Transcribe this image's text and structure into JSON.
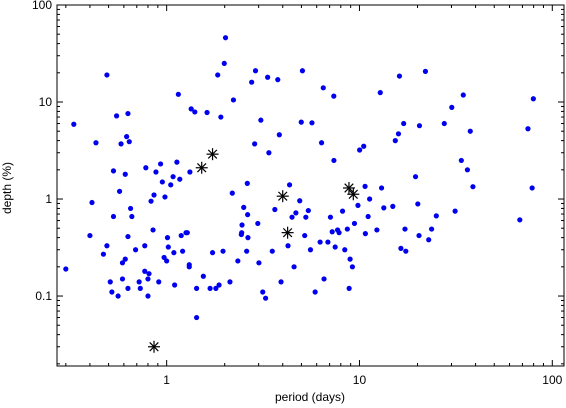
{
  "chart_data": {
    "type": "scatter",
    "xlabel": "period (days)",
    "ylabel": "depth (%)",
    "xscale": "log",
    "yscale": "log",
    "xlim": [
      0.27,
      115
    ],
    "ylim": [
      0.019,
      100
    ],
    "xticks": [
      {
        "value": 1,
        "label": "1"
      },
      {
        "value": 10,
        "label": "10"
      },
      {
        "value": 100,
        "label": "100"
      }
    ],
    "yticks": [
      {
        "value": 0.1,
        "label": "0.1"
      },
      {
        "value": 1,
        "label": "1"
      },
      {
        "value": 10,
        "label": "10"
      },
      {
        "value": 100,
        "label": "100"
      }
    ],
    "grid": false,
    "legend": "none",
    "series": [
      {
        "marker": "dot",
        "color": "#0000ee",
        "points": [
          [
            0.3,
            0.19
          ],
          [
            0.33,
            5.9
          ],
          [
            0.4,
            0.42
          ],
          [
            0.41,
            0.92
          ],
          [
            0.43,
            3.8
          ],
          [
            0.47,
            0.27
          ],
          [
            0.49,
            19
          ],
          [
            0.49,
            0.33
          ],
          [
            0.51,
            0.14
          ],
          [
            0.52,
            0.11
          ],
          [
            0.53,
            0.66
          ],
          [
            0.53,
            1.95
          ],
          [
            0.55,
            7.2
          ],
          [
            0.56,
            0.1
          ],
          [
            0.57,
            1.2
          ],
          [
            0.58,
            3.7
          ],
          [
            0.59,
            0.22
          ],
          [
            0.59,
            0.15
          ],
          [
            0.61,
            0.24
          ],
          [
            0.61,
            1.8
          ],
          [
            0.62,
            4.4
          ],
          [
            0.63,
            7.6
          ],
          [
            0.63,
            0.41
          ],
          [
            0.63,
            0.12
          ],
          [
            0.64,
            3.9
          ],
          [
            0.65,
            0.8
          ],
          [
            0.66,
            0.66
          ],
          [
            0.69,
            0.3
          ],
          [
            0.72,
            0.14
          ],
          [
            0.73,
            0.12
          ],
          [
            0.77,
            0.18
          ],
          [
            0.77,
            0.33
          ],
          [
            0.78,
            2.1
          ],
          [
            0.8,
            0.1
          ],
          [
            0.8,
            0.15
          ],
          [
            0.81,
            0.17
          ],
          [
            0.83,
            0.95
          ],
          [
            0.85,
            0.48
          ],
          [
            0.86,
            1.1
          ],
          [
            0.88,
            1.9
          ],
          [
            0.91,
            0.14
          ],
          [
            0.93,
            2.3
          ],
          [
            0.95,
            1.5
          ],
          [
            0.97,
            0.25
          ],
          [
            0.98,
            1.05
          ],
          [
            1.0,
            0.23
          ],
          [
            1.01,
            0.4
          ],
          [
            1.02,
            0.32
          ],
          [
            1.05,
            1.4
          ],
          [
            1.08,
            1.7
          ],
          [
            1.09,
            0.28
          ],
          [
            1.1,
            0.13
          ],
          [
            1.13,
            2.4
          ],
          [
            1.15,
            12.0
          ],
          [
            1.17,
            1.6
          ],
          [
            1.19,
            0.42
          ],
          [
            1.21,
            0.29
          ],
          [
            1.26,
            0.45
          ],
          [
            1.28,
            0.45
          ],
          [
            1.31,
            0.2
          ],
          [
            1.31,
            0.21
          ],
          [
            1.32,
            1.9
          ],
          [
            1.34,
            8.5
          ],
          [
            1.4,
            7.9
          ],
          [
            1.43,
            0.06
          ],
          [
            1.43,
            0.12
          ],
          [
            1.55,
            0.16
          ],
          [
            1.62,
            7.8
          ],
          [
            1.68,
            0.12
          ],
          [
            1.73,
            0.28
          ],
          [
            1.8,
            0.12
          ],
          [
            1.84,
            19
          ],
          [
            1.87,
            0.13
          ],
          [
            1.91,
            7.0
          ],
          [
            1.96,
            0.29
          ],
          [
            1.99,
            25
          ],
          [
            2.02,
            46
          ],
          [
            2.13,
            0.14
          ],
          [
            2.19,
            1.15
          ],
          [
            2.22,
            10.5
          ],
          [
            2.34,
            0.23
          ],
          [
            2.44,
            0.43
          ],
          [
            2.45,
            0.45
          ],
          [
            2.46,
            0.54
          ],
          [
            2.51,
            0.82
          ],
          [
            2.6,
            0.29
          ],
          [
            2.62,
            1.45
          ],
          [
            2.63,
            0.69
          ],
          [
            2.64,
            0.4
          ],
          [
            2.76,
            16
          ],
          [
            2.86,
            3.7
          ],
          [
            2.89,
            21
          ],
          [
            2.97,
            0.56
          ],
          [
            3.01,
            0.22
          ],
          [
            3.08,
            6.5
          ],
          [
            3.15,
            0.11
          ],
          [
            3.26,
            0.095
          ],
          [
            3.34,
            18
          ],
          [
            3.39,
            3.0
          ],
          [
            3.53,
            0.29
          ],
          [
            3.64,
            0.78
          ],
          [
            3.77,
            17
          ],
          [
            3.84,
            4.6
          ],
          [
            3.92,
            0.14
          ],
          [
            4.26,
            0.33
          ],
          [
            4.34,
            1.4
          ],
          [
            4.47,
            0.65
          ],
          [
            4.58,
            0.2
          ],
          [
            4.68,
            0.72
          ],
          [
            4.9,
            0.96
          ],
          [
            4.99,
            6.2
          ],
          [
            5.06,
            21
          ],
          [
            5.2,
            0.42
          ],
          [
            5.27,
            0.65
          ],
          [
            5.43,
            0.76
          ],
          [
            5.57,
            0.3
          ],
          [
            5.67,
            6.1
          ],
          [
            5.89,
            0.11
          ],
          [
            6.25,
            0.36
          ],
          [
            6.36,
            3.8
          ],
          [
            6.49,
            14
          ],
          [
            6.55,
            0.15
          ],
          [
            6.86,
            0.36
          ],
          [
            7.07,
            0.65
          ],
          [
            7.22,
            0.46
          ],
          [
            7.36,
            11.5
          ],
          [
            7.37,
            2.5
          ],
          [
            7.48,
            0.32
          ],
          [
            7.7,
            0.48
          ],
          [
            7.84,
            0.45
          ],
          [
            8.17,
            0.75
          ],
          [
            8.39,
            0.3
          ],
          [
            8.65,
            0.49
          ],
          [
            8.84,
            0.12
          ],
          [
            8.94,
            0.24
          ],
          [
            9.19,
            0.2
          ],
          [
            9.42,
            0.56
          ],
          [
            9.82,
            0.86
          ],
          [
            10.02,
            3.2
          ],
          [
            10.52,
            3.5
          ],
          [
            10.69,
            1.35
          ],
          [
            10.73,
            0.44
          ],
          [
            11.09,
            0.66
          ],
          [
            11.29,
            1.0
          ],
          [
            12.31,
            0.48
          ],
          [
            12.82,
            12.5
          ],
          [
            13.02,
            1.3
          ],
          [
            13.37,
            0.81
          ],
          [
            14.89,
            0.84
          ],
          [
            15.34,
            4.0
          ],
          [
            15.93,
            4.7
          ],
          [
            16.12,
            18.5
          ],
          [
            16.4,
            0.31
          ],
          [
            16.95,
            6.0
          ],
          [
            17.22,
            0.49
          ],
          [
            17.39,
            0.29
          ],
          [
            19.53,
            1.7
          ],
          [
            20.07,
            0.89
          ],
          [
            20.36,
            0.42
          ],
          [
            20.47,
            5.7
          ],
          [
            21.98,
            20.7
          ],
          [
            22.86,
            0.38
          ],
          [
            23.66,
            0.49
          ],
          [
            25.03,
            0.67
          ],
          [
            27.53,
            6.0
          ],
          [
            30.11,
            8.8
          ],
          [
            31.33,
            0.75
          ],
          [
            33.75,
            2.5
          ],
          [
            34.54,
            11.8
          ],
          [
            36.29,
            2.0
          ],
          [
            37.55,
            5.0
          ],
          [
            38.76,
            1.34
          ],
          [
            67.84,
            0.61
          ],
          [
            74.78,
            5.3
          ],
          [
            78.61,
            1.3
          ],
          [
            79.75,
            10.8
          ]
        ]
      },
      {
        "marker": "asterisk",
        "color": "#000000",
        "points": [
          [
            0.86,
            0.03
          ],
          [
            1.52,
            2.1
          ],
          [
            1.73,
            2.9
          ],
          [
            4.0,
            1.07
          ],
          [
            4.24,
            0.45
          ],
          [
            8.82,
            1.3
          ],
          [
            9.29,
            1.12
          ]
        ]
      }
    ]
  }
}
